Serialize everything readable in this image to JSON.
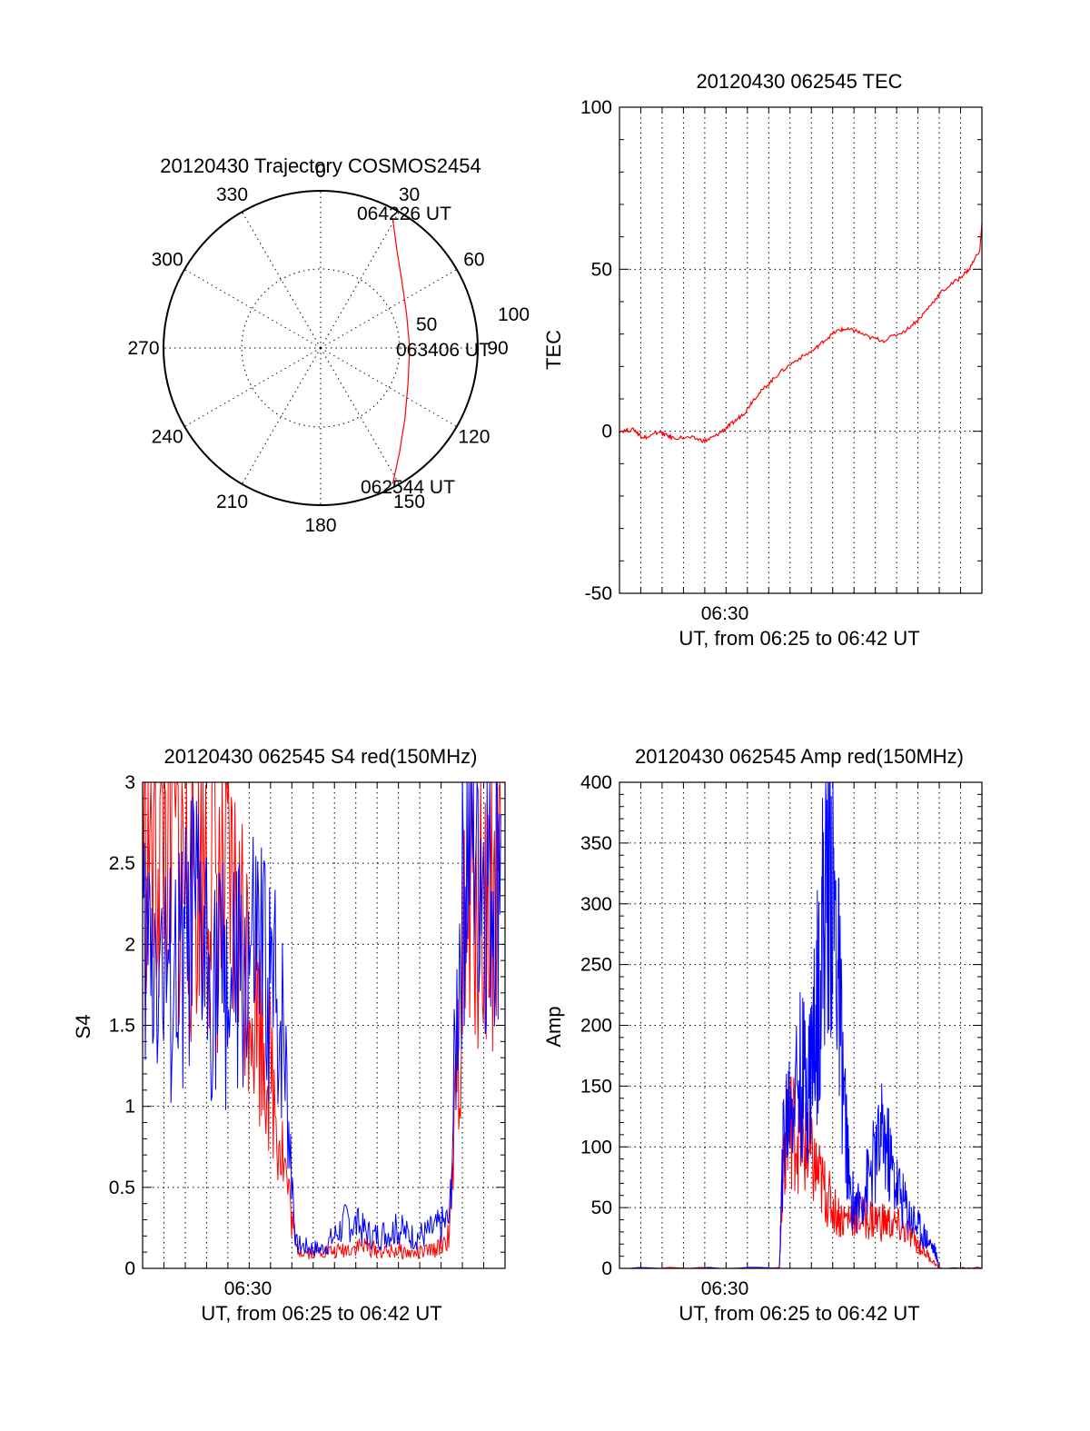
{
  "chart_data": [
    {
      "id": "trajectory",
      "type": "polar",
      "title": "20120430 Trajectory COSMOS2454",
      "azimuth_labels": [
        "0",
        "30",
        "60",
        "90",
        "120",
        "150",
        "180",
        "210",
        "240",
        "270",
        "300",
        "330"
      ],
      "radial_labels": [
        "50",
        "100"
      ],
      "zenith_range": [
        0,
        90
      ],
      "line_color": "#ff0000",
      "start_label": "062544 UT",
      "mid_label": "063406 UT",
      "end_label": "064226 UT",
      "track": [
        {
          "az": 152.0,
          "zen": 88.0
        },
        {
          "az": 143.0,
          "zen": 75.0
        },
        {
          "az": 130.0,
          "zen": 63.0
        },
        {
          "az": 112.0,
          "zen": 54.0
        },
        {
          "az": 90.0,
          "zen": 51.0
        },
        {
          "az": 68.0,
          "zen": 53.0
        },
        {
          "az": 51.0,
          "zen": 60.0
        },
        {
          "az": 38.0,
          "zen": 71.0
        },
        {
          "az": 29.0,
          "zen": 85.0
        }
      ]
    },
    {
      "id": "tec",
      "type": "line",
      "title": "20120430 062545 TEC",
      "xlabel": "UT, from 06:25 to 06:42 UT",
      "ylabel": "TEC",
      "x_tick_label": "06:30",
      "ylim": [
        -50,
        100
      ],
      "yticks": [
        "-50",
        "0",
        "50",
        "100"
      ],
      "grid": true,
      "series": [
        {
          "color": "#ff0000",
          "x_minutes": [
            0.0,
            0.7,
            1.0,
            1.3,
            1.9,
            2.1,
            2.5,
            3.4,
            4.0,
            4.5,
            5.0,
            5.4,
            5.9,
            6.3,
            6.9,
            7.5,
            8.3,
            9.1,
            9.6,
            10.2,
            10.6,
            11.1,
            11.7,
            12.4,
            13.4,
            14.1,
            14.6,
            15.1,
            15.9,
            16.4,
            16.9
          ],
          "values": [
            0.0,
            0.5,
            -1.5,
            -2.0,
            0.0,
            -1.0,
            -2.0,
            -2.0,
            -3.0,
            -1.5,
            1.0,
            3.0,
            6.0,
            10.0,
            14.0,
            18.0,
            22.0,
            25.0,
            28.0,
            31.0,
            31.5,
            31.0,
            29.0,
            28.0,
            31.0,
            35.0,
            39.0,
            43.0,
            47.0,
            50.0,
            56.0
          ]
        }
      ],
      "tail": {
        "x_minutes": [
          16.9,
          17.0
        ],
        "values": [
          56.0,
          64.0
        ]
      }
    },
    {
      "id": "s4",
      "type": "line",
      "title": "20120430 062545 S4 red(150MHz)",
      "xlabel": "UT, from 06:25 to 06:42 UT",
      "ylabel": "S4",
      "x_tick_label": "06:30",
      "ylim": [
        0,
        3
      ],
      "yticks": [
        "0",
        "0.5",
        "1",
        "1.5",
        "2",
        "2.5",
        "3"
      ],
      "grid": true,
      "series": [
        {
          "color": "#ff0000",
          "x_minutes": [
            0.0,
            0.6,
            1.2,
            1.8,
            2.4,
            3.0,
            3.6,
            4.2,
            4.8,
            5.4,
            6.0,
            6.6,
            7.2,
            7.8,
            8.4,
            9.0,
            9.6,
            10.2,
            10.8,
            11.4,
            12.0,
            12.6,
            13.2,
            13.8,
            14.4,
            15.0,
            15.6,
            16.2,
            16.8
          ],
          "values": [
            3.0,
            2.6,
            2.8,
            2.5,
            2.4,
            2.7,
            2.3,
            2.2,
            2.0,
            1.6,
            1.2,
            0.7,
            0.12,
            0.1,
            0.11,
            0.1,
            0.12,
            0.14,
            0.12,
            0.1,
            0.11,
            0.09,
            0.1,
            0.12,
            0.2,
            1.8,
            2.4,
            2.2,
            2.6
          ]
        },
        {
          "color": "#0000ff",
          "x_minutes": [
            0.0,
            0.6,
            1.2,
            1.8,
            2.4,
            3.0,
            3.6,
            4.2,
            4.8,
            5.4,
            6.0,
            6.6,
            7.2,
            7.8,
            8.4,
            9.0,
            9.6,
            10.2,
            10.8,
            11.4,
            12.0,
            12.6,
            13.2,
            13.8,
            14.4,
            15.0,
            15.6,
            16.2,
            16.8
          ],
          "values": [
            1.9,
            2.0,
            1.7,
            1.8,
            2.1,
            1.9,
            1.8,
            1.7,
            1.8,
            1.9,
            1.7,
            1.5,
            0.15,
            0.13,
            0.12,
            0.2,
            0.3,
            0.25,
            0.2,
            0.22,
            0.24,
            0.2,
            0.21,
            0.25,
            0.3,
            2.6,
            2.9,
            2.5,
            2.8
          ]
        }
      ]
    },
    {
      "id": "amp",
      "type": "line",
      "title": "20120430 062545 Amp red(150MHz)",
      "xlabel": "UT, from 06:25 to 06:42 UT",
      "ylabel": "Amp",
      "x_tick_label": "06:30",
      "ylim": [
        0,
        400
      ],
      "yticks": [
        "0",
        "50",
        "100",
        "150",
        "200",
        "250",
        "300",
        "350",
        "400"
      ],
      "grid": true,
      "series": [
        {
          "color": "#ff0000",
          "x_minutes": [
            0.0,
            7.5,
            7.7,
            8.0,
            8.4,
            8.8,
            9.2,
            9.6,
            10.0,
            10.5,
            11.0,
            11.5,
            12.0,
            12.5,
            13.0,
            13.5,
            14.0,
            14.5,
            15.0,
            17.0
          ],
          "values": [
            0,
            0,
            100,
            120,
            110,
            95,
            80,
            65,
            50,
            40,
            45,
            42,
            40,
            38,
            35,
            30,
            20,
            10,
            0,
            0
          ]
        },
        {
          "color": "#0000ff",
          "x_minutes": [
            0.0,
            7.5,
            7.7,
            8.0,
            8.4,
            8.8,
            9.0,
            9.3,
            9.6,
            9.9,
            10.2,
            10.5,
            10.8,
            11.2,
            11.6,
            12.0,
            12.4,
            12.8,
            13.2,
            13.6,
            14.0,
            14.4,
            14.8,
            15.0,
            17.0
          ],
          "values": [
            0,
            0,
            110,
            140,
            160,
            150,
            170,
            220,
            300,
            340,
            260,
            150,
            60,
            50,
            70,
            90,
            110,
            80,
            60,
            45,
            35,
            25,
            15,
            0,
            0
          ]
        }
      ]
    }
  ]
}
